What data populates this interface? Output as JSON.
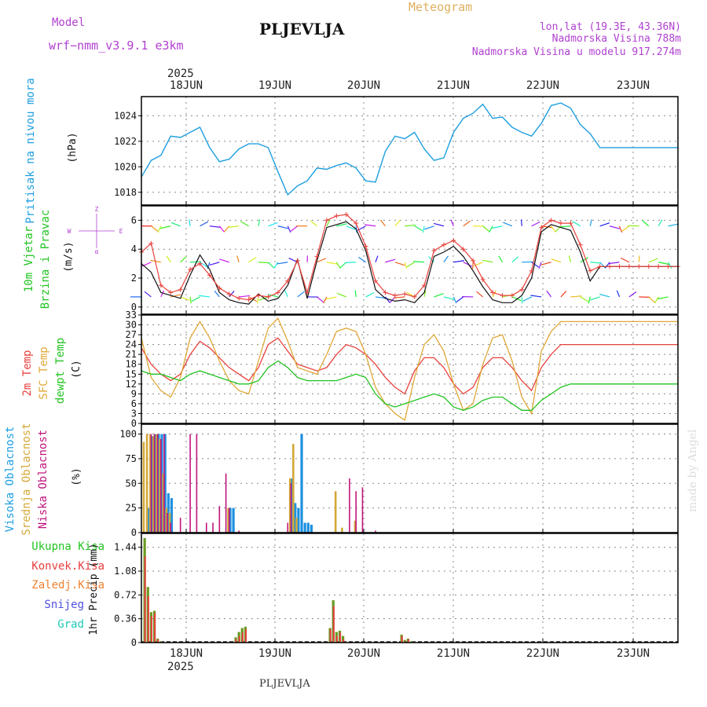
{
  "header": {
    "model_label": "Model",
    "model_name": "wrf−nmm_v3.9.1  e3km",
    "station": "PLJEVLJA",
    "product": "Meteogram",
    "coords": "lon,lat (19.3E, 43.36N)",
    "elevation": "Nadmorska Visina 788m",
    "model_elevation": "Nadmorska Visina u modelu 917.274m",
    "year": "2025",
    "watermark": "made by Angel",
    "footer_station": "PLJEVLJA"
  },
  "colors": {
    "pressure": "#1e9fe0",
    "temp2m": "#e8413c",
    "sfc": "#e0a838",
    "dew": "#22c422",
    "high_cloud": "#1e90e0",
    "mid_cloud": "#d4a838",
    "low_cloud": "#c0147c",
    "total_precip": "#6a9a22",
    "conv_precip": "#e84040",
    "purple_text": "#b040d0",
    "grid": "#888888"
  },
  "days": [
    "18JUN",
    "19JUN",
    "20JUN",
    "21JUN",
    "22JUN",
    "23JUN"
  ],
  "chart_data": [
    {
      "type": "line",
      "title": "Pritisak na nivou mora",
      "ylabel": "(hPa)",
      "ylim": [
        1017,
        1025.5
      ],
      "yticks": [
        1018,
        1020,
        1022,
        1024
      ],
      "x": [
        0,
        3,
        6,
        9,
        12,
        15,
        18,
        21,
        24,
        27,
        30,
        33,
        36,
        39,
        42,
        45,
        48,
        51,
        54,
        57,
        60,
        63,
        66,
        69,
        72,
        75,
        78,
        81,
        84,
        87,
        90,
        93,
        96,
        99,
        102,
        105,
        108,
        111,
        114,
        117,
        120,
        123,
        126,
        129,
        132,
        135,
        138,
        141,
        144,
        147,
        150,
        153,
        156,
        159,
        162,
        165
      ],
      "series": [
        {
          "name": "Pritisak",
          "values": [
            1019.2,
            1020.5,
            1020.9,
            1022.4,
            1022.3,
            1022.7,
            1023.1,
            1021.5,
            1020.4,
            1020.6,
            1021.4,
            1021.8,
            1021.8,
            1021.5,
            1019.6,
            1017.8,
            1018.5,
            1018.9,
            1019.9,
            1019.8,
            1020.1,
            1020.3,
            1019.9,
            1018.9,
            1018.8,
            1021.2,
            1022.4,
            1022.2,
            1022.7,
            1021.4,
            1020.5,
            1020.7,
            1022.7,
            1023.8,
            1024.2,
            1024.9,
            1023.8,
            1023.9,
            1023.1,
            1022.7,
            1022.4,
            1023.4,
            1024.8,
            1025.0,
            1024.6,
            1023.3,
            1022.6,
            1021.5,
            1021.5,
            1021.5,
            1021.5,
            1021.5,
            1021.5,
            1021.5,
            1021.5,
            1021.5
          ]
        }
      ]
    },
    {
      "type": "line",
      "title": "10m Vjetar Brzina i Pravac",
      "ylabel": "(m/s)",
      "ylim": [
        -0.5,
        7
      ],
      "yticks": [
        0,
        2,
        4,
        6
      ],
      "direction_legend": {
        "n": "Z",
        "s": "α",
        "w": "W",
        "e": "E"
      },
      "x": [
        0,
        3,
        6,
        9,
        12,
        15,
        18,
        21,
        24,
        27,
        30,
        33,
        36,
        39,
        42,
        45,
        48,
        51,
        54,
        57,
        60,
        63,
        66,
        69,
        72,
        75,
        78,
        81,
        84,
        87,
        90,
        93,
        96,
        99,
        102,
        105,
        108,
        111,
        114,
        117,
        120,
        123,
        126,
        129,
        132,
        135,
        138,
        141,
        144,
        147,
        150,
        153,
        156,
        159,
        162,
        165
      ],
      "series": [
        {
          "name": "Brzina (model)",
          "values": [
            3.0,
            2.4,
            1.0,
            0.8,
            0.6,
            2.2,
            3.6,
            2.6,
            1.0,
            0.5,
            0.3,
            0.2,
            0.9,
            0.4,
            0.6,
            1.5,
            3.3,
            0.6,
            3.2,
            5.5,
            5.7,
            5.9,
            5.4,
            3.9,
            1.2,
            0.6,
            0.4,
            0.5,
            0.3,
            1.0,
            3.5,
            3.8,
            4.2,
            3.5,
            2.5,
            1.4,
            0.5,
            0.3,
            0.3,
            0.8,
            2.0,
            5.2,
            5.7,
            5.5,
            5.3,
            3.8,
            1.8,
            2.8,
            2.8,
            2.8,
            2.8,
            2.8,
            2.8,
            2.8,
            2.8,
            2.8
          ]
        },
        {
          "name": "Brzina (udari)",
          "values": [
            3.8,
            4.4,
            1.5,
            1.0,
            1.2,
            2.6,
            3.0,
            2.2,
            1.3,
            0.9,
            0.6,
            0.5,
            0.8,
            0.7,
            1.0,
            1.8,
            3.2,
            1.0,
            3.5,
            6.0,
            6.3,
            6.4,
            5.8,
            4.2,
            1.8,
            1.0,
            0.8,
            0.9,
            0.7,
            1.5,
            3.9,
            4.3,
            4.6,
            4.0,
            3.2,
            1.9,
            1.0,
            0.8,
            0.8,
            1.2,
            2.5,
            5.5,
            6.0,
            5.8,
            5.8,
            4.3,
            2.5,
            2.8,
            2.8,
            2.8,
            2.8,
            2.8,
            2.8,
            2.8,
            2.8,
            2.8
          ]
        }
      ]
    },
    {
      "type": "line",
      "title": "2m Temp / SFC Temp / dewpt Temp",
      "ylabel": "(C)",
      "ylim": [
        0,
        33
      ],
      "yticks": [
        0,
        3,
        6,
        9,
        12,
        15,
        18,
        21,
        24,
        27,
        30,
        33
      ],
      "x": [
        0,
        3,
        6,
        9,
        12,
        15,
        18,
        21,
        24,
        27,
        30,
        33,
        36,
        39,
        42,
        45,
        48,
        51,
        54,
        57,
        60,
        63,
        66,
        69,
        72,
        75,
        78,
        81,
        84,
        87,
        90,
        93,
        96,
        99,
        102,
        105,
        108,
        111,
        114,
        117,
        120,
        123,
        126,
        129,
        132,
        135,
        138,
        141,
        144,
        147,
        150,
        153,
        156,
        159,
        162,
        165
      ],
      "series": [
        {
          "name": "2m Temp",
          "values": [
            23,
            18,
            15,
            13,
            15,
            21,
            25,
            23,
            20,
            17,
            15,
            13,
            17,
            24,
            26,
            22,
            18,
            17,
            16,
            17,
            21,
            24,
            23,
            21,
            18,
            14,
            11,
            9,
            16,
            20,
            20,
            17,
            12,
            9,
            11,
            17,
            20,
            20,
            17,
            13,
            10,
            17,
            21,
            24,
            24,
            24,
            24,
            24,
            24,
            24,
            24,
            24,
            24,
            24,
            24,
            24
          ]
        },
        {
          "name": "SFC Temp",
          "values": [
            26,
            14,
            10,
            8,
            14,
            26,
            31,
            26,
            19,
            13,
            10,
            9,
            19,
            29,
            32,
            25,
            17,
            16,
            15,
            21,
            28,
            29,
            28,
            21,
            11,
            6,
            3,
            1,
            14,
            24,
            27,
            22,
            12,
            4,
            6,
            18,
            26,
            27,
            19,
            8,
            3,
            22,
            28,
            31,
            31,
            31,
            31,
            31,
            31,
            31,
            31,
            31,
            31,
            31,
            31,
            31
          ]
        },
        {
          "name": "dewpt Temp",
          "values": [
            16,
            15,
            15,
            14,
            13,
            15,
            16,
            15,
            14,
            13,
            12,
            12,
            13,
            17,
            19,
            17,
            14,
            13,
            13,
            13,
            13,
            14,
            15,
            14,
            9,
            6,
            5,
            6,
            7,
            8,
            9,
            8,
            5,
            4,
            5,
            7,
            8,
            8,
            6,
            4,
            4,
            7,
            9,
            11,
            12,
            12,
            12,
            12,
            12,
            12,
            12,
            12,
            12,
            12,
            12,
            12
          ]
        }
      ]
    },
    {
      "type": "bar",
      "title": "Visoka / Srednja / Niska Oblacnost",
      "ylabel": "(%)",
      "ylim": [
        0,
        110
      ],
      "yticks": [
        0,
        25,
        50,
        75,
        100
      ],
      "x": [
        1,
        2,
        3,
        4,
        5,
        6,
        7,
        8,
        9,
        12,
        15,
        17,
        20,
        22,
        24,
        26,
        27,
        28,
        30,
        45,
        46,
        47,
        48,
        49,
        50,
        51,
        52,
        56,
        60,
        62,
        64,
        66,
        68,
        72
      ],
      "series": [
        {
          "name": "Visoka Oblacnost",
          "values": [
            0,
            25,
            98,
            100,
            100,
            100,
            100,
            40,
            35,
            0,
            0,
            0,
            0,
            0,
            0,
            0,
            25,
            25,
            0,
            0,
            55,
            30,
            25,
            100,
            10,
            10,
            8,
            0,
            0,
            0,
            0,
            0,
            0,
            0
          ]
        },
        {
          "name": "Srednja Oblacnost",
          "values": [
            92,
            100,
            100,
            98,
            100,
            95,
            60,
            25,
            20,
            0,
            0,
            0,
            0,
            0,
            0,
            0,
            25,
            0,
            0,
            0,
            55,
            90,
            15,
            0,
            0,
            0,
            0,
            0,
            42,
            5,
            0,
            12,
            0,
            0
          ]
        },
        {
          "name": "Niska Oblacnost",
          "values": [
            0,
            0,
            100,
            100,
            100,
            95,
            100,
            20,
            10,
            15,
            100,
            100,
            10,
            10,
            27,
            60,
            25,
            0,
            2,
            10,
            50,
            0,
            0,
            0,
            0,
            0,
            0,
            0,
            0,
            0,
            55,
            42,
            46,
            2
          ]
        }
      ]
    },
    {
      "type": "bar",
      "title": "1hr Precip",
      "ylabel": "1hr Precip (mm)",
      "ylim": [
        0,
        1.65
      ],
      "yticks": [
        0,
        0.36,
        0.72,
        1.08,
        1.44
      ],
      "ytick_labels": [
        "0",
        "0.36",
        "0.72",
        "1.08",
        "1.44"
      ],
      "legend": [
        "Ukupna Kisa",
        "Konvek.Kisa",
        "Zaledj.Kisa",
        "Snijeg",
        "Grad"
      ],
      "x": [
        1,
        2,
        3,
        4,
        5,
        6,
        7,
        29,
        30,
        31,
        32,
        58,
        59,
        60,
        61,
        62,
        63,
        80,
        81,
        82,
        83,
        84
      ],
      "series": [
        {
          "name": "Ukupna Kisa",
          "values": [
            1.58,
            0.84,
            0.46,
            0.48,
            0.06,
            0.02,
            0.0,
            0.08,
            0.16,
            0.22,
            0.24,
            0.22,
            0.64,
            0.16,
            0.18,
            0.1,
            0.01,
            0.12,
            0.04,
            0.06,
            0.02,
            0.01
          ]
        },
        {
          "name": "Konvek.Kisa",
          "values": [
            1.3,
            0.7,
            0.4,
            0.45,
            0.05,
            0.0,
            0.0,
            0.05,
            0.1,
            0.15,
            0.2,
            0.2,
            0.55,
            0.1,
            0.15,
            0.05,
            0.0,
            0.1,
            0.02,
            0.05,
            0.0,
            0.0
          ]
        }
      ]
    }
  ],
  "panel_titles": {
    "p0": [
      "Pritisak na nivou mora"
    ],
    "p1": [
      "10m Vjetar",
      "Brzina i Pravac"
    ],
    "p2": [
      "2m Temp",
      "SFC Temp",
      "dewpt Temp"
    ],
    "p3": [
      "Visoka Oblacnost",
      "Srednja Oblacnost",
      "Niska Oblacnost"
    ],
    "p4": [
      "Ukupna Kisa",
      "Konvek.Kisa",
      "Zaledj.Kisa",
      "Snijeg",
      "Grad"
    ]
  },
  "legend_colors": {
    "p4": [
      "#22c422",
      "#e84040",
      "#f08030",
      "#5050e0",
      "#20c8b8"
    ]
  }
}
